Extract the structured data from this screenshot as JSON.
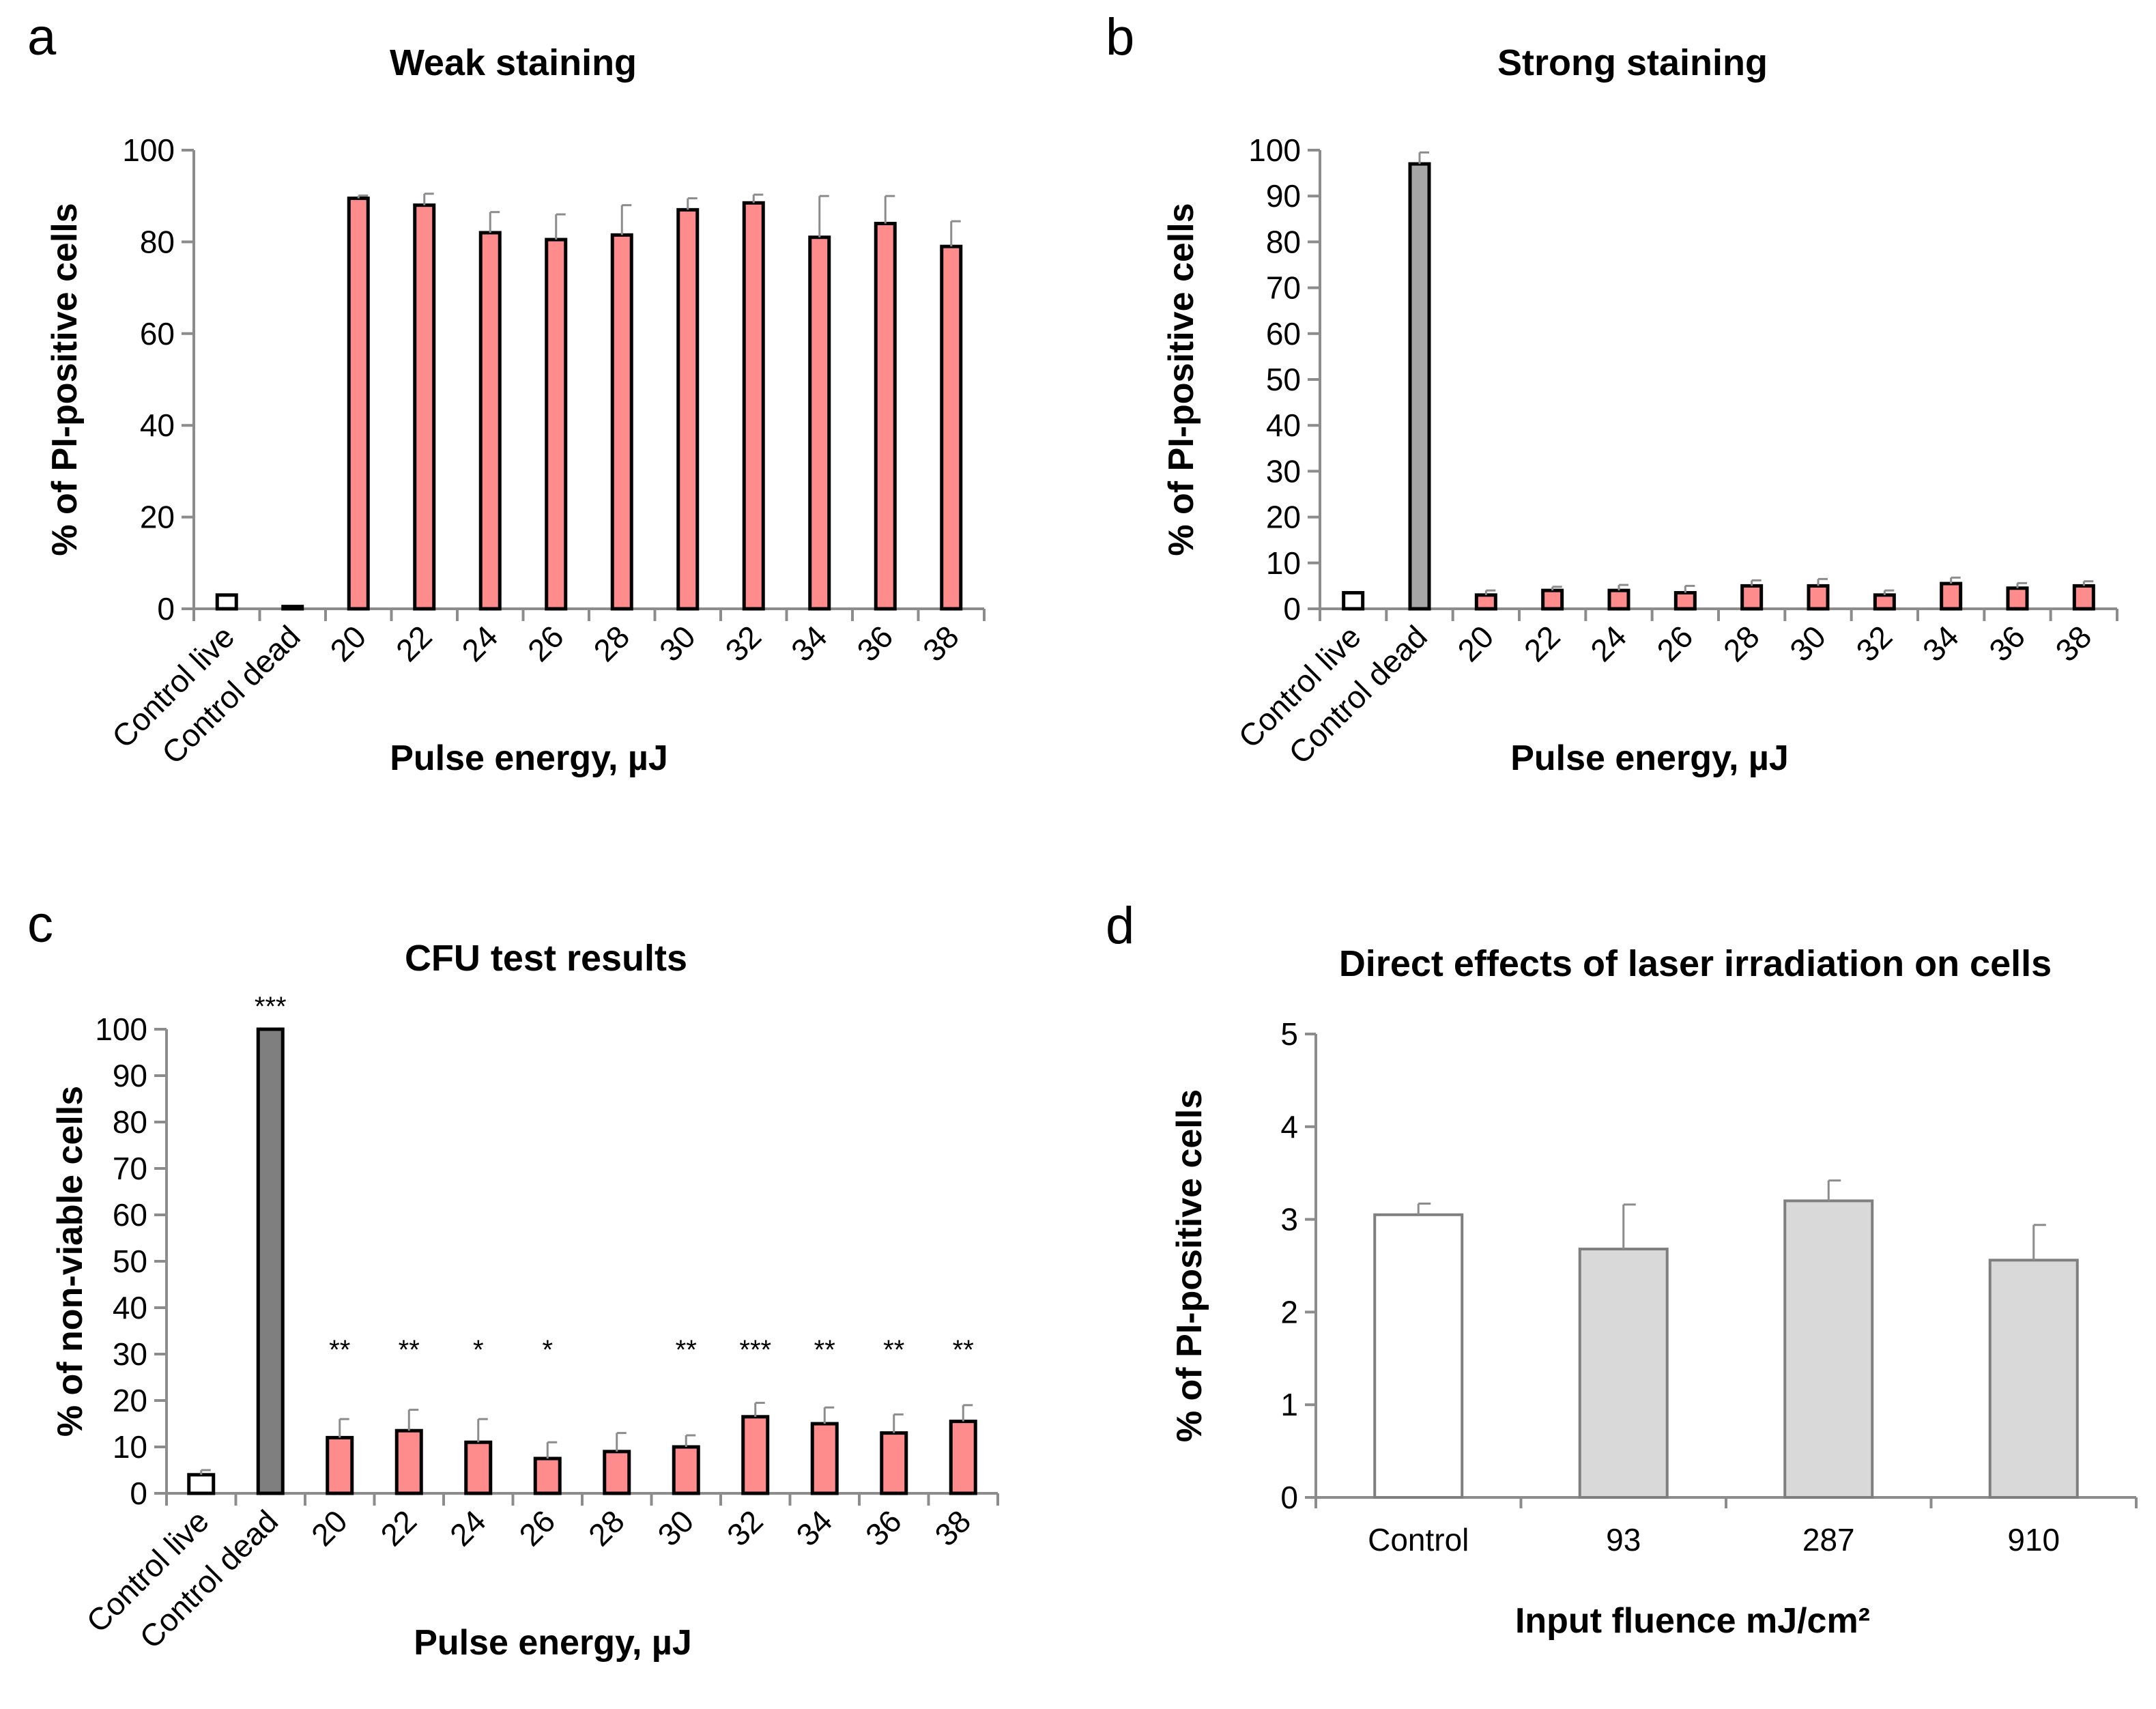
{
  "panels": [
    "a",
    "b",
    "c",
    "d"
  ],
  "chart_data": [
    {
      "type": "bar",
      "title": "Weak staining",
      "xlabel": "Pulse energy, µJ",
      "ylabel": "% of PI-positive cells",
      "categories": [
        "Control live",
        "Control dead",
        "20",
        "22",
        "24",
        "26",
        "28",
        "30",
        "32",
        "34",
        "36",
        "38"
      ],
      "values": [
        3,
        0.5,
        89.5,
        88,
        82,
        80.5,
        81.5,
        87,
        88.5,
        81,
        84,
        79
      ],
      "errors": [
        0,
        0,
        0.6,
        2.5,
        4.5,
        5.5,
        6.5,
        2.5,
        1.8,
        9,
        6,
        5.5
      ],
      "significance": [
        "",
        "",
        "",
        "",
        "",
        "",
        "",
        "",
        "",
        "",
        "",
        ""
      ],
      "bar_colors": [
        "#ffffff",
        "#ffffff",
        "#ff8c8c",
        "#ff8c8c",
        "#ff8c8c",
        "#ff8c8c",
        "#ff8c8c",
        "#ff8c8c",
        "#ff8c8c",
        "#ff8c8c",
        "#ff8c8c",
        "#ff8c8c"
      ],
      "ylim": [
        0,
        100
      ],
      "yticks": [
        "0",
        "20",
        "40",
        "60",
        "80",
        "100"
      ],
      "grid": false
    },
    {
      "type": "bar",
      "title": "Strong staining",
      "xlabel": "Pulse energy, µJ",
      "ylabel": "% of PI-positive cells",
      "categories": [
        "Control live",
        "Control dead",
        "20",
        "22",
        "24",
        "26",
        "28",
        "30",
        "32",
        "34",
        "36",
        "38"
      ],
      "values": [
        3.5,
        97,
        3,
        4,
        4,
        3.5,
        5,
        5,
        3,
        5.5,
        4.5,
        5
      ],
      "errors": [
        0,
        2.5,
        1,
        0.8,
        1.2,
        1.5,
        1.2,
        1.5,
        1,
        1.3,
        1.1,
        1
      ],
      "significance": [
        "",
        "",
        "",
        "",
        "",
        "",
        "",
        "",
        "",
        "",
        "",
        ""
      ],
      "bar_colors": [
        "#ffffff",
        "#a6a6a6",
        "#ff8c8c",
        "#ff8c8c",
        "#ff8c8c",
        "#ff8c8c",
        "#ff8c8c",
        "#ff8c8c",
        "#ff8c8c",
        "#ff8c8c",
        "#ff8c8c",
        "#ff8c8c"
      ],
      "ylim": [
        0,
        100
      ],
      "yticks": [
        "0",
        "10",
        "20",
        "30",
        "40",
        "50",
        "60",
        "70",
        "80",
        "90",
        "100"
      ],
      "grid": false
    },
    {
      "type": "bar",
      "title": "CFU test results",
      "xlabel": "Pulse energy, µJ",
      "ylabel": "% of non-viable cells",
      "categories": [
        "Control live",
        "Control dead",
        "20",
        "22",
        "24",
        "26",
        "28",
        "30",
        "32",
        "34",
        "36",
        "38"
      ],
      "values": [
        4,
        100,
        12,
        13.5,
        11,
        7.5,
        9,
        10,
        16.5,
        15,
        13,
        15.5
      ],
      "errors": [
        1,
        0,
        4,
        4.5,
        5,
        3.5,
        4,
        2.5,
        3,
        3.5,
        4,
        3.5
      ],
      "significance": [
        "",
        "***",
        "**",
        "**",
        "*",
        "*",
        "",
        "**",
        "***",
        "**",
        "**",
        "**"
      ],
      "bar_colors": [
        "#ffffff",
        "#7f7f7f",
        "#ff8c8c",
        "#ff8c8c",
        "#ff8c8c",
        "#ff8c8c",
        "#ff8c8c",
        "#ff8c8c",
        "#ff8c8c",
        "#ff8c8c",
        "#ff8c8c",
        "#ff8c8c"
      ],
      "ylim": [
        0,
        100
      ],
      "yticks": [
        "0",
        "10",
        "20",
        "30",
        "40",
        "50",
        "60",
        "70",
        "80",
        "90",
        "100"
      ],
      "grid": false
    },
    {
      "type": "bar",
      "title": "Direct effects of laser irradiation on cells",
      "xlabel": "Input fluence mJ/cm²",
      "ylabel": "% of PI-positive cells",
      "categories": [
        "Control",
        "93",
        "287",
        "910"
      ],
      "values": [
        3.05,
        2.68,
        3.2,
        2.56
      ],
      "errors": [
        0.12,
        0.48,
        0.22,
        0.38
      ],
      "significance": [
        "",
        "",
        "",
        ""
      ],
      "bar_colors": [
        "#ffffff",
        "#d9d9d9",
        "#d9d9d9",
        "#d9d9d9"
      ],
      "ylim": [
        0,
        5
      ],
      "yticks": [
        "0",
        "1",
        "2",
        "3",
        "4",
        "5"
      ],
      "grid": false
    }
  ]
}
